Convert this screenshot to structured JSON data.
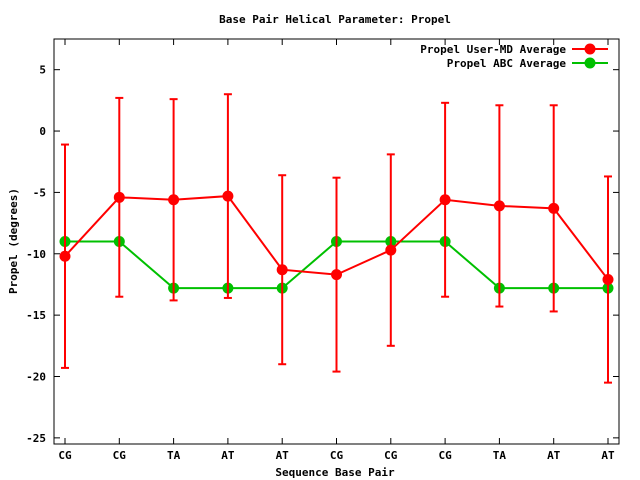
{
  "chart_data": {
    "type": "line",
    "title": "Base Pair Helical Parameter: Propel",
    "xlabel": "Sequence Base Pair",
    "ylabel": "Propel (degrees)",
    "categories": [
      "CG",
      "CG",
      "TA",
      "AT",
      "AT",
      "CG",
      "CG",
      "CG",
      "TA",
      "AT",
      "AT"
    ],
    "ylim": [
      -25.5,
      7.5
    ],
    "yticks": [
      5,
      0,
      -5,
      -10,
      -15,
      -20,
      -25
    ],
    "grid": false,
    "legend_position": "top-right",
    "series": [
      {
        "name": "Propel User-MD Average",
        "color": "#ff0000",
        "values": [
          -10.2,
          -5.4,
          -5.6,
          -5.3,
          -11.3,
          -11.7,
          -9.7,
          -5.6,
          -6.1,
          -6.3,
          -12.1
        ],
        "error": [
          9.1,
          8.1,
          8.2,
          8.3,
          7.7,
          7.9,
          7.8,
          7.9,
          8.2,
          8.4,
          8.4
        ]
      },
      {
        "name": "Propel ABC Average",
        "color": "#00c000",
        "values": [
          -9.0,
          -9.0,
          -12.8,
          -12.8,
          -12.8,
          -9.0,
          -9.0,
          -9.0,
          -12.8,
          -12.8,
          -12.8
        ]
      }
    ]
  }
}
